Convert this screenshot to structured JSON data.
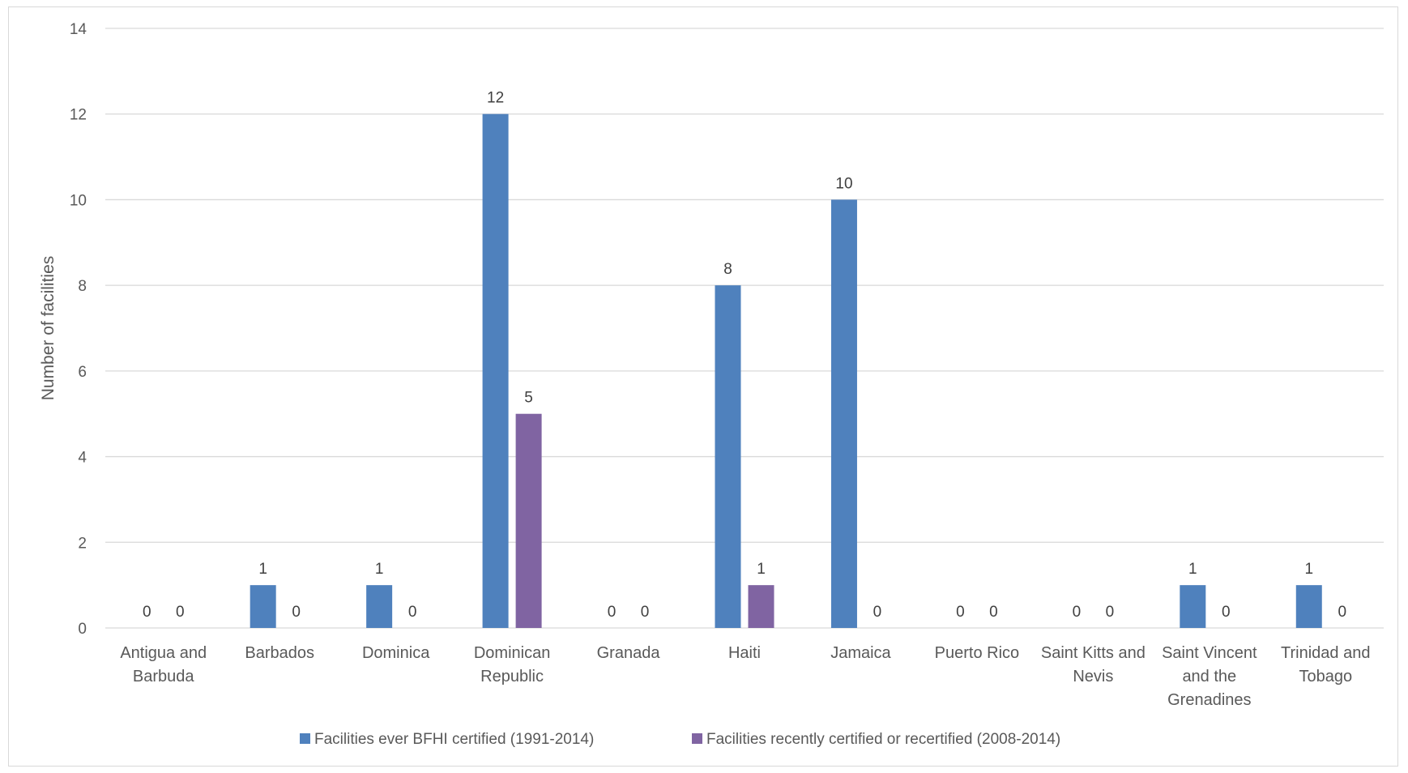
{
  "chart_data": {
    "type": "bar",
    "title": "",
    "xlabel": "",
    "ylabel": "Number of facilities",
    "ylim": [
      0,
      14
    ],
    "yticks": [
      0,
      2,
      4,
      6,
      8,
      10,
      12,
      14
    ],
    "grid": true,
    "legend_position": "bottom",
    "categories": [
      [
        "Antigua and",
        "Barbuda"
      ],
      [
        "Barbados"
      ],
      [
        "Dominica"
      ],
      [
        "Dominican",
        "Republic"
      ],
      [
        "Granada"
      ],
      [
        "Haiti"
      ],
      [
        "Jamaica"
      ],
      [
        "Puerto Rico"
      ],
      [
        "Saint Kitts and",
        "Nevis"
      ],
      [
        "Saint Vincent",
        "and the",
        "Grenadines"
      ],
      [
        "Trinidad and",
        "Tobago"
      ]
    ],
    "series": [
      {
        "name": "Facilities ever BFHI certified (1991-2014)",
        "color": "#4f81bd",
        "values": [
          0,
          1,
          1,
          12,
          0,
          8,
          10,
          0,
          0,
          1,
          1
        ]
      },
      {
        "name": "Facilities recently certified or recertified (2008-2014)",
        "color": "#8064a2",
        "values": [
          0,
          0,
          0,
          5,
          0,
          1,
          0,
          0,
          0,
          0,
          0
        ]
      }
    ]
  }
}
